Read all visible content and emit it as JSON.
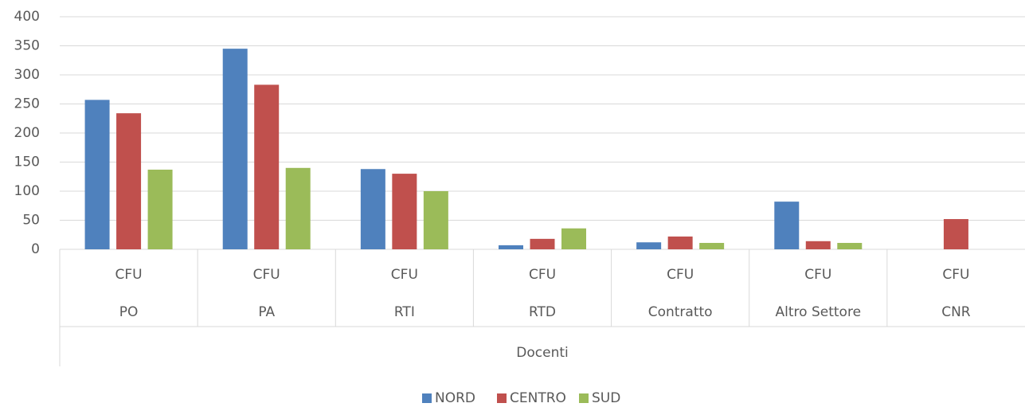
{
  "chart_data": {
    "type": "bar",
    "categories": [
      "PO",
      "PA",
      "RTI",
      "RTD",
      "Contratto",
      "Altro Settore",
      "CNR"
    ],
    "sublabels": [
      "CFU",
      "CFU",
      "CFU",
      "CFU",
      "CFU",
      "CFU",
      "CFU"
    ],
    "group_label": "Docenti",
    "series": [
      {
        "name": "NORD",
        "color": "#4f81bd",
        "values": [
          257,
          345,
          138,
          7,
          12,
          82,
          null
        ]
      },
      {
        "name": "CENTRO",
        "color": "#c0504d",
        "values": [
          234,
          283,
          130,
          18,
          22,
          14,
          52
        ]
      },
      {
        "name": "SUD",
        "color": "#9bbb59",
        "values": [
          137,
          140,
          100,
          36,
          11,
          11,
          null
        ]
      }
    ],
    "ylim": [
      0,
      400
    ],
    "yticks": [
      0,
      50,
      100,
      150,
      200,
      250,
      300,
      350,
      400
    ],
    "grid": true,
    "legend": "bottom"
  }
}
